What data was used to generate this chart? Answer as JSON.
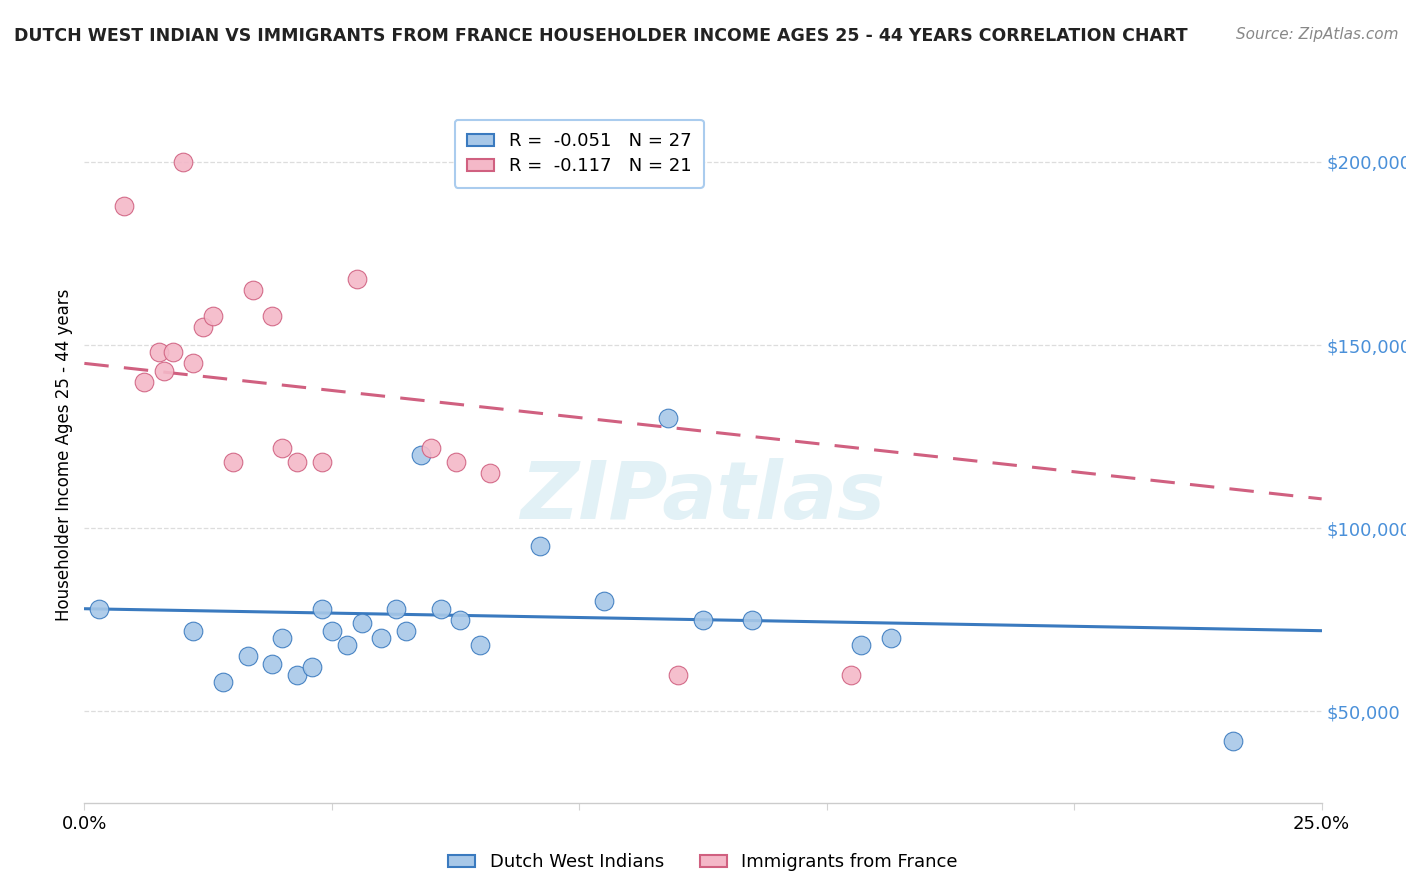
{
  "title": "DUTCH WEST INDIAN VS IMMIGRANTS FROM FRANCE HOUSEHOLDER INCOME AGES 25 - 44 YEARS CORRELATION CHART",
  "source": "Source: ZipAtlas.com",
  "ylabel": "Householder Income Ages 25 - 44 years",
  "xlim": [
    0.0,
    0.25
  ],
  "ylim": [
    25000,
    215000
  ],
  "ytick_values": [
    50000,
    100000,
    150000,
    200000
  ],
  "ytick_labels": [
    "$50,000",
    "$100,000",
    "$150,000",
    "$200,000"
  ],
  "legend_r1": "R =  -0.051   N = 27",
  "legend_r2": "R =  -0.117   N = 21",
  "color_blue": "#a8c8e8",
  "color_pink": "#f4b8c8",
  "line_blue": "#3a7abf",
  "line_pink": "#d06080",
  "ytick_color": "#4a90d9",
  "watermark_text": "ZIPatlas",
  "blue_scatter_x": [
    0.003,
    0.022,
    0.028,
    0.033,
    0.038,
    0.04,
    0.043,
    0.046,
    0.048,
    0.05,
    0.053,
    0.056,
    0.06,
    0.063,
    0.065,
    0.068,
    0.072,
    0.076,
    0.08,
    0.092,
    0.105,
    0.118,
    0.125,
    0.135,
    0.157,
    0.163,
    0.232
  ],
  "blue_scatter_y": [
    78000,
    72000,
    58000,
    65000,
    63000,
    70000,
    60000,
    62000,
    78000,
    72000,
    68000,
    74000,
    70000,
    78000,
    72000,
    120000,
    78000,
    75000,
    68000,
    95000,
    80000,
    130000,
    75000,
    75000,
    68000,
    70000,
    42000
  ],
  "pink_scatter_x": [
    0.008,
    0.012,
    0.015,
    0.016,
    0.018,
    0.02,
    0.022,
    0.024,
    0.026,
    0.03,
    0.034,
    0.038,
    0.04,
    0.043,
    0.048,
    0.055,
    0.07,
    0.075,
    0.082,
    0.12,
    0.155
  ],
  "pink_scatter_y": [
    188000,
    140000,
    148000,
    143000,
    148000,
    200000,
    145000,
    155000,
    158000,
    118000,
    165000,
    158000,
    122000,
    118000,
    118000,
    168000,
    122000,
    118000,
    115000,
    60000,
    60000
  ],
  "blue_line_x": [
    0.0,
    0.25
  ],
  "blue_line_y": [
    78000,
    72000
  ],
  "pink_line_x": [
    0.0,
    0.25
  ],
  "pink_line_y": [
    145000,
    108000
  ]
}
